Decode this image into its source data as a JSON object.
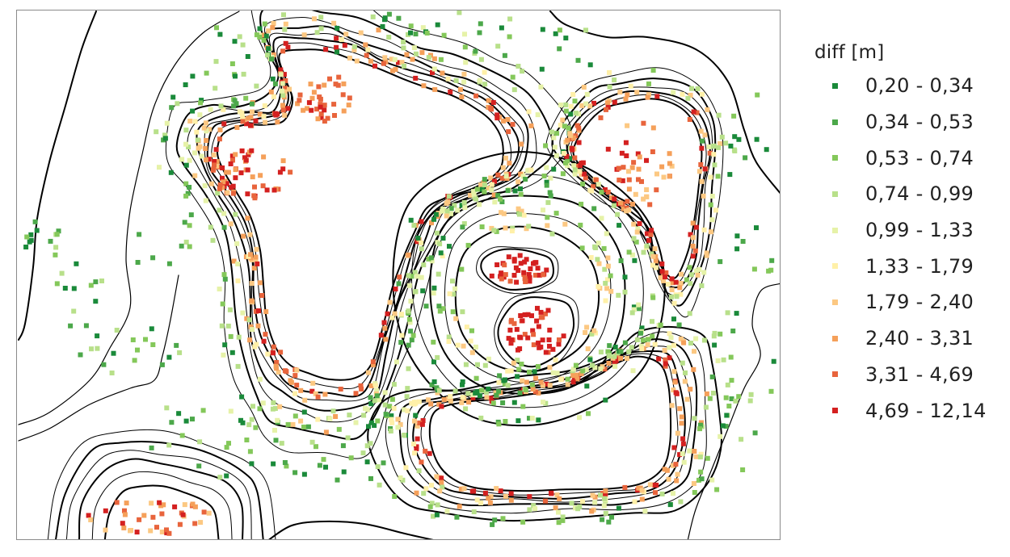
{
  "legend": {
    "title": "diff [m]",
    "classes": [
      {
        "label": "0,20 - 0,34",
        "color": "#1a8a3a"
      },
      {
        "label": "0,34 - 0,53",
        "color": "#4ca84a"
      },
      {
        "label": "0,53 - 0,74",
        "color": "#84c85a"
      },
      {
        "label": "0,74 - 0,99",
        "color": "#b8e08a"
      },
      {
        "label": "0,99 - 1,33",
        "color": "#e6f2a8"
      },
      {
        "label": "1,33 - 1,79",
        "color": "#fff0a8"
      },
      {
        "label": "1,79 - 2,40",
        "color": "#fcc882"
      },
      {
        "label": "2,40 - 3,31",
        "color": "#f5a05a"
      },
      {
        "label": "3,31 - 4,69",
        "color": "#e8643c"
      },
      {
        "label": "4,69 - 12,14",
        "color": "#d42020"
      }
    ]
  },
  "map": {
    "contour_color": "#000000",
    "frame_color": "#8a8a8a",
    "background": "#ffffff"
  }
}
